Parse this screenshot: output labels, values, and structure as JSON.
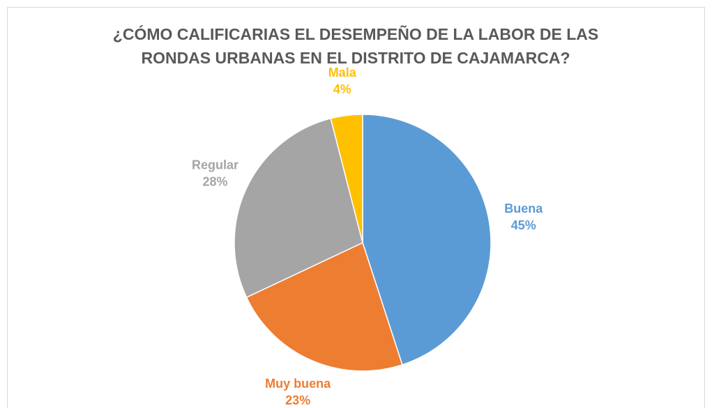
{
  "chart_data": {
    "type": "pie",
    "title": "¿CÓMO CALIFICARIAS EL DESEMPEÑO DE LA LABOR DE LAS RONDAS URBANAS EN EL DISTRITO DE CAJAMARCA?",
    "categories": [
      "Buena",
      "Muy buena",
      "Regular",
      "Mala"
    ],
    "values": [
      45,
      23,
      28,
      4
    ],
    "value_labels": [
      "45%",
      "23%",
      "28%",
      "4%"
    ],
    "colors": [
      "#5b9bd5",
      "#ed7d31",
      "#a5a5a5",
      "#ffc000"
    ]
  }
}
